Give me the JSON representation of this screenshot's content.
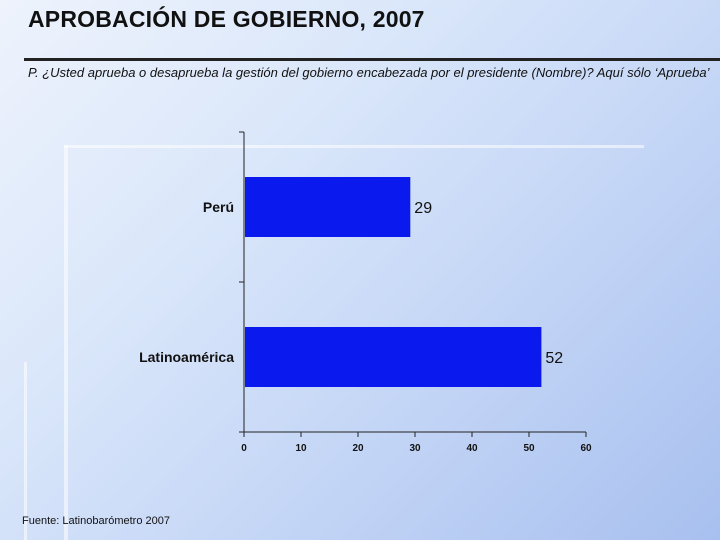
{
  "slide": {
    "title": "APROBACIÓN DE GOBIERNO, 2007",
    "question": "P. ¿Usted aprueba o desaprueba la gestión del gobierno encabezada por el presidente (Nombre)?  Aquí  sólo ‘Aprueba’",
    "source": "Fuente: Latinobarómetro 2007"
  },
  "colors": {
    "bar": "#0a1aef",
    "axis": "#222222",
    "text": "#111111"
  },
  "chart_data": {
    "type": "bar",
    "orientation": "horizontal",
    "categories": [
      "Perú",
      "Latinoamérica"
    ],
    "values": [
      29,
      52
    ],
    "value_labels": [
      "29",
      "52"
    ],
    "xlim": [
      0,
      60
    ],
    "xticks": [
      0,
      10,
      20,
      30,
      40,
      50,
      60
    ],
    "grid": false,
    "legend": "none"
  }
}
